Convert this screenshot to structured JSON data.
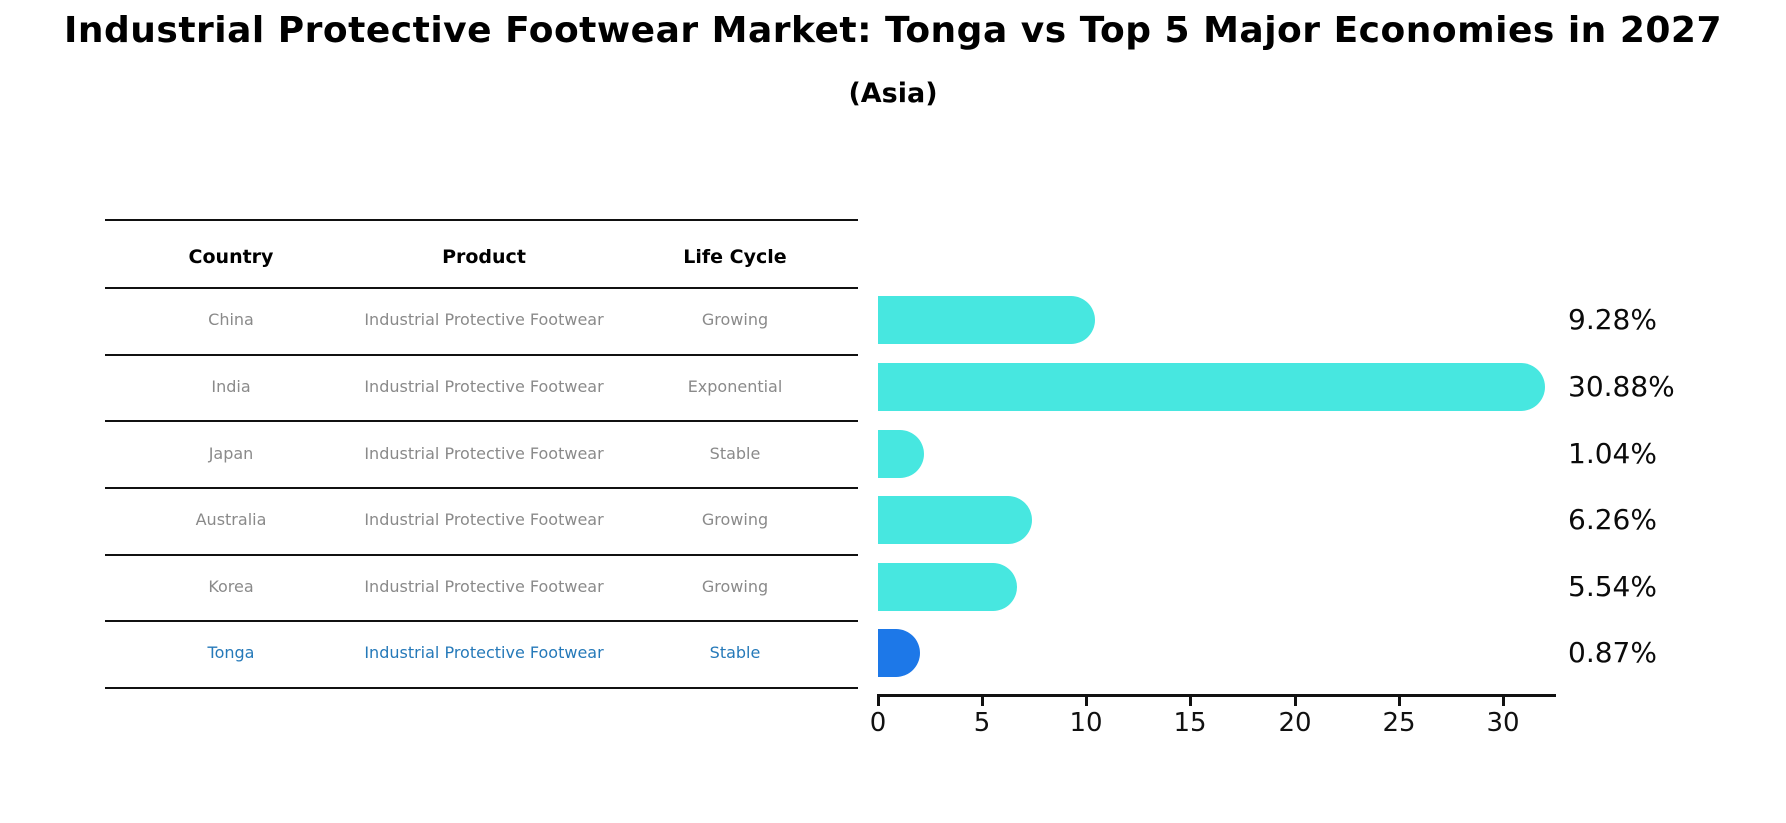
{
  "title": "Industrial Protective Footwear Market: Tonga vs Top 5 Major Economies in 2027",
  "subtitle": "(Asia)",
  "table": {
    "columns": [
      "Country",
      "Product",
      "Life Cycle"
    ],
    "rows": [
      {
        "country": "China",
        "product": "Industrial Protective Footwear",
        "life_cycle": "Growing",
        "highlight": false
      },
      {
        "country": "India",
        "product": "Industrial Protective Footwear",
        "life_cycle": "Exponential",
        "highlight": false
      },
      {
        "country": "Japan",
        "product": "Industrial Protective Footwear",
        "life_cycle": "Stable",
        "highlight": false
      },
      {
        "country": "Australia",
        "product": "Industrial Protective Footwear",
        "life_cycle": "Growing",
        "highlight": false
      },
      {
        "country": "Korea",
        "product": "Industrial Protective Footwear",
        "life_cycle": "Growing",
        "highlight": false
      },
      {
        "country": "Tonga",
        "product": "Industrial Protective Footwear",
        "life_cycle": "Stable",
        "highlight": true
      }
    ]
  },
  "chart_data": {
    "type": "bar",
    "orientation": "horizontal",
    "title": "Industrial Protective Footwear Market: Tonga vs Top 5 Major Economies in 2027 (Asia)",
    "categories": [
      "China",
      "India",
      "Japan",
      "Australia",
      "Korea",
      "Tonga"
    ],
    "values": [
      9.28,
      30.88,
      1.04,
      6.26,
      5.54,
      0.87
    ],
    "value_labels": [
      "9.28%",
      "30.88%",
      "1.04%",
      "6.26%",
      "5.54%",
      "0.87%"
    ],
    "x_ticks": [
      "0",
      "5",
      "10",
      "15",
      "20",
      "25",
      "30"
    ],
    "xlim": [
      0,
      32.5
    ],
    "xlabel": "",
    "ylabel": "",
    "grid": false,
    "legend": false,
    "bar_color": "#47e7e0",
    "highlight_color": "#1d78e8",
    "highlight_index": 5
  },
  "colors": {
    "highlight_text": "#2579b9",
    "table_text": "#8a8a8a",
    "axis": "#111111",
    "background": "#ffffff"
  }
}
